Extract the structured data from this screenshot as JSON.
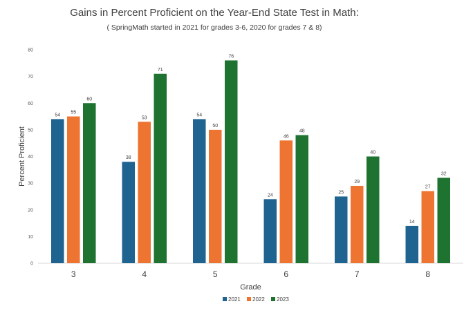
{
  "chart_data": {
    "type": "bar",
    "title": "Gains in Percent Proficient on the Year-End State Test in Math:",
    "subtitle": "( SpringMath started in 2021 for grades 3-6, 2020 for grades 7 & 8)",
    "xlabel": "Grade",
    "ylabel": "Percent Proficient",
    "categories": [
      "3",
      "4",
      "5",
      "6",
      "7",
      "8"
    ],
    "ylim": [
      0,
      80
    ],
    "yticks": [
      0,
      10,
      20,
      30,
      40,
      50,
      60,
      70,
      80
    ],
    "grid": false,
    "legend_position": "bottom",
    "series": [
      {
        "name": "2021",
        "color": "#1f6391",
        "values": [
          54,
          38,
          54,
          24,
          25,
          14
        ]
      },
      {
        "name": "2022",
        "color": "#ed7431",
        "values": [
          55,
          53,
          50,
          46,
          29,
          27
        ]
      },
      {
        "name": "2023",
        "color": "#1e7330",
        "values": [
          60,
          71,
          76,
          48,
          40,
          32
        ]
      }
    ]
  }
}
